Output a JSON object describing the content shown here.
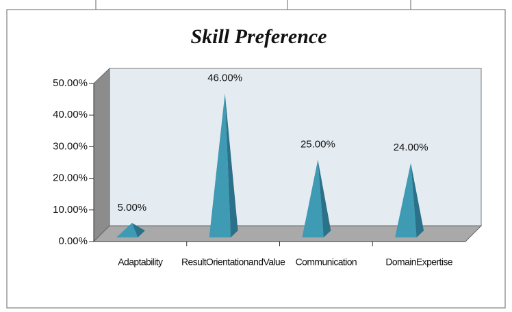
{
  "chart_data": {
    "type": "pyramid",
    "title": "Skill Preference",
    "categories": [
      "Adaptability",
      "ResultOrientationandValue",
      "Communication",
      "DomainExpertise"
    ],
    "values": [
      5,
      46,
      25,
      24
    ],
    "value_labels": [
      "5.00%",
      "46.00%",
      "25.00%",
      "24.00%"
    ],
    "color": "#3f9ab4",
    "ylim": [
      0,
      50
    ],
    "yticks": [
      {
        "value": 0,
        "label": "0.00%"
      },
      {
        "value": 10,
        "label": "10.00%"
      },
      {
        "value": 20,
        "label": "20.00%"
      },
      {
        "value": 30,
        "label": "30.00%"
      },
      {
        "value": 40,
        "label": "40.00%"
      },
      {
        "value": 50,
        "label": "50.00%"
      }
    ]
  }
}
